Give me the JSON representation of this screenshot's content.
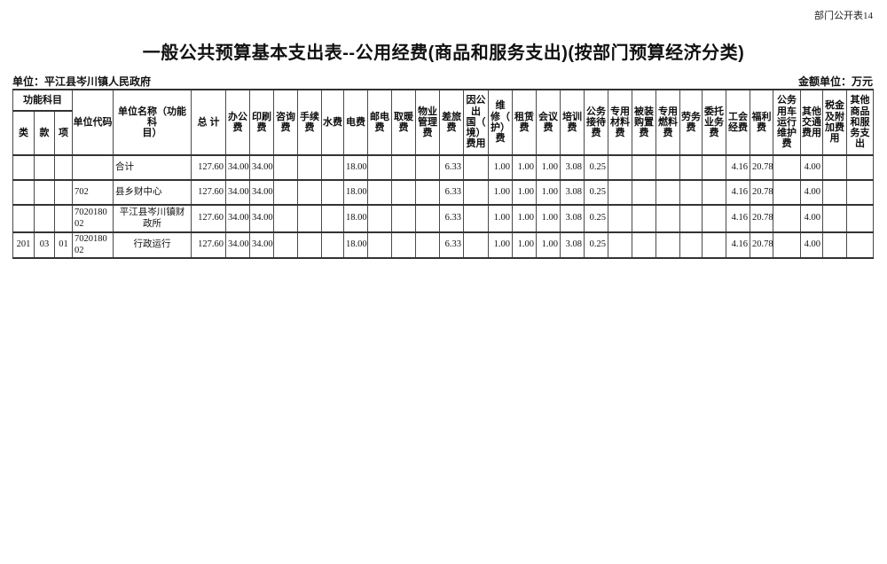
{
  "page": {
    "sheet_label": "部门公开表14",
    "title": "一般公共预算基本支出表--公用经费(商品和服务支出)(按部门预算经济分类)",
    "unit_label": "单位：平江县岑川镇人民政府",
    "amount_unit_label": "金额单位：万元"
  },
  "table": {
    "function_group": {
      "label": "功能科目",
      "sub_columns": [
        "类",
        "款",
        "项"
      ]
    },
    "columns": [
      "单位代码",
      "单位名称（功能科\n目）",
      "总  计",
      "办公\n费",
      "印刷\n费",
      "咨询\n费",
      "手续\n费",
      "水费",
      "电费",
      "邮电\n费",
      "取暖\n费",
      "物业\n管理\n费",
      "差旅\n费",
      "因公\n出\n国（\n境）\n费用",
      "维\n修（\n护）\n费",
      "租赁\n费",
      "会议\n费",
      "培训\n费",
      "公务\n接待\n费",
      "专用\n材料\n费",
      "被装\n购置\n费",
      "专用\n燃料\n费",
      "劳务\n费",
      "委托\n业务\n费",
      "工会\n经费",
      "福利\n费",
      "公务\n用车\n运行\n维护\n费",
      "其他\n交通\n费用",
      "税金\n及附\n加费\n用",
      "其他\n商品\n和服\n务支\n出"
    ],
    "rows": [
      {
        "name_align": "left",
        "cells": [
          "",
          "",
          "",
          "",
          "合计",
          "127.60",
          "34.00",
          "34.00",
          "",
          "",
          "",
          "18.00",
          "",
          "",
          "",
          "6.33",
          "",
          "1.00",
          "1.00",
          "1.00",
          "3.08",
          "0.25",
          "",
          "",
          "",
          "",
          "",
          "4.16",
          "20.78",
          "",
          "4.00",
          "",
          ""
        ]
      },
      {
        "name_align": "left",
        "cells": [
          "",
          "",
          "",
          "702",
          "县乡财中心",
          "127.60",
          "34.00",
          "34.00",
          "",
          "",
          "",
          "18.00",
          "",
          "",
          "",
          "6.33",
          "",
          "1.00",
          "1.00",
          "1.00",
          "3.08",
          "0.25",
          "",
          "",
          "",
          "",
          "",
          "4.16",
          "20.78",
          "",
          "4.00",
          "",
          ""
        ]
      },
      {
        "name_align": "center",
        "cells": [
          "",
          "",
          "",
          "702018002",
          "平江县岑川镇财政所",
          "127.60",
          "34.00",
          "34.00",
          "",
          "",
          "",
          "18.00",
          "",
          "",
          "",
          "6.33",
          "",
          "1.00",
          "1.00",
          "1.00",
          "3.08",
          "0.25",
          "",
          "",
          "",
          "",
          "",
          "4.16",
          "20.78",
          "",
          "4.00",
          "",
          ""
        ]
      },
      {
        "name_align": "center",
        "cells": [
          "201",
          "03",
          "01",
          "702018002",
          "行政运行",
          "127.60",
          "34.00",
          "34.00",
          "",
          "",
          "",
          "18.00",
          "",
          "",
          "",
          "6.33",
          "",
          "1.00",
          "1.00",
          "1.00",
          "3.08",
          "0.25",
          "",
          "",
          "",
          "",
          "",
          "4.16",
          "20.78",
          "",
          "4.00",
          "",
          ""
        ]
      }
    ]
  }
}
